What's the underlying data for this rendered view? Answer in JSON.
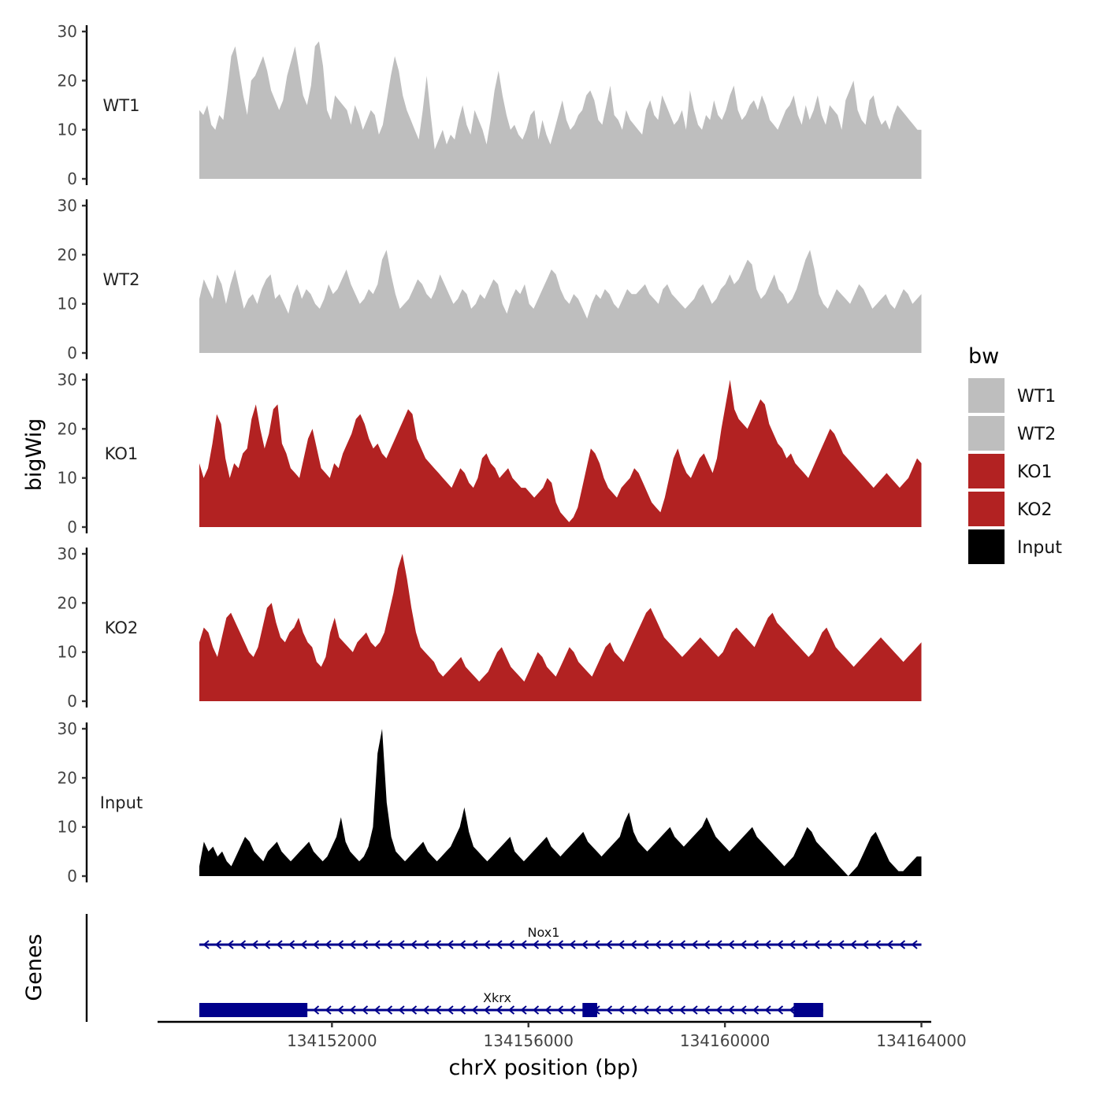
{
  "chart_data": {
    "type": "area",
    "title": "",
    "xlabel": "chrX position (bp)",
    "ylabel": "bigWig",
    "genes_label": "Genes",
    "xlim": [
      134148450,
      134164200
    ],
    "x_ticks": [
      134152000,
      134156000,
      134160000,
      134164000
    ],
    "x_tick_labels": [
      "134152000",
      "134156000",
      "134160000",
      "134164000"
    ],
    "y_ticks": [
      0,
      10,
      20,
      30
    ],
    "ylim": [
      0,
      30
    ],
    "x_start": 134149300,
    "x_end": 134164000,
    "tracks": [
      {
        "name": "WT1",
        "color": "#bebebe",
        "values": [
          14,
          13,
          15,
          11,
          10,
          13,
          12,
          18,
          25,
          27,
          22,
          17,
          13,
          20,
          21,
          23,
          25,
          22,
          18,
          16,
          14,
          16,
          21,
          24,
          27,
          22,
          17,
          15,
          19,
          27,
          28,
          23,
          14,
          12,
          17,
          16,
          15,
          14,
          11,
          15,
          13,
          10,
          12,
          14,
          13,
          9,
          11,
          16,
          21,
          25,
          22,
          17,
          14,
          12,
          10,
          8,
          14,
          21,
          13,
          6,
          8,
          10,
          7,
          9,
          8,
          12,
          15,
          11,
          9,
          14,
          12,
          10,
          7,
          12,
          18,
          22,
          17,
          13,
          10,
          11,
          9,
          8,
          10,
          13,
          14,
          8,
          12,
          9,
          7,
          10,
          13,
          16,
          12,
          10,
          11,
          13,
          14,
          17,
          18,
          16,
          12,
          11,
          15,
          19,
          13,
          12,
          10,
          14,
          12,
          11,
          10,
          9,
          14,
          16,
          13,
          12,
          17,
          15,
          13,
          11,
          12,
          14,
          10,
          18,
          14,
          11,
          10,
          13,
          12,
          16,
          13,
          12,
          14,
          17,
          19,
          14,
          12,
          13,
          15,
          16,
          14,
          17,
          15,
          12,
          11,
          10,
          12,
          14,
          15,
          17,
          13,
          11,
          15,
          12,
          14,
          17,
          13,
          11,
          15,
          14,
          13,
          10,
          16,
          18,
          20,
          14,
          12,
          11,
          16,
          17,
          13,
          11,
          12,
          10,
          13,
          15,
          14,
          13,
          12,
          11,
          10,
          10
        ]
      },
      {
        "name": "WT2",
        "color": "#bebebe",
        "values": [
          11,
          15,
          13,
          11,
          16,
          14,
          10,
          14,
          17,
          13,
          9,
          11,
          12,
          10,
          13,
          15,
          16,
          11,
          12,
          10,
          8,
          12,
          14,
          11,
          13,
          12,
          10,
          9,
          11,
          14,
          12,
          13,
          15,
          17,
          14,
          12,
          10,
          11,
          13,
          12,
          14,
          19,
          21,
          16,
          12,
          9,
          10,
          11,
          13,
          15,
          14,
          12,
          11,
          13,
          16,
          14,
          12,
          10,
          11,
          13,
          12,
          9,
          10,
          12,
          11,
          13,
          15,
          14,
          10,
          8,
          11,
          13,
          12,
          14,
          10,
          9,
          11,
          13,
          15,
          17,
          16,
          13,
          11,
          10,
          12,
          11,
          9,
          7,
          10,
          12,
          11,
          13,
          12,
          10,
          9,
          11,
          13,
          12,
          12,
          13,
          14,
          12,
          11,
          10,
          13,
          14,
          12,
          11,
          10,
          9,
          10,
          11,
          13,
          14,
          12,
          10,
          11,
          13,
          14,
          16,
          14,
          15,
          17,
          19,
          18,
          13,
          11,
          12,
          14,
          16,
          13,
          12,
          10,
          11,
          13,
          16,
          19,
          21,
          17,
          12,
          10,
          9,
          11,
          13,
          12,
          11,
          10,
          12,
          14,
          13,
          11,
          9,
          10,
          11,
          12,
          10,
          9,
          11,
          13,
          12,
          10,
          11,
          12
        ]
      },
      {
        "name": "KO1",
        "color": "#b22222",
        "values": [
          13,
          10,
          12,
          17,
          23,
          21,
          14,
          10,
          13,
          12,
          15,
          16,
          22,
          25,
          20,
          16,
          19,
          24,
          25,
          17,
          15,
          12,
          11,
          10,
          14,
          18,
          20,
          16,
          12,
          11,
          10,
          13,
          12,
          15,
          17,
          19,
          22,
          23,
          21,
          18,
          16,
          17,
          15,
          14,
          16,
          18,
          20,
          22,
          24,
          23,
          18,
          16,
          14,
          13,
          12,
          11,
          10,
          9,
          8,
          10,
          12,
          11,
          9,
          8,
          10,
          14,
          15,
          13,
          12,
          10,
          11,
          12,
          10,
          9,
          8,
          8,
          7,
          6,
          7,
          8,
          10,
          9,
          5,
          3,
          2,
          1,
          2,
          4,
          8,
          12,
          16,
          15,
          13,
          10,
          8,
          7,
          6,
          8,
          9,
          10,
          12,
          11,
          9,
          7,
          5,
          4,
          3,
          6,
          10,
          14,
          16,
          13,
          11,
          10,
          12,
          14,
          15,
          13,
          11,
          14,
          20,
          25,
          30,
          24,
          22,
          21,
          20,
          22,
          24,
          26,
          25,
          21,
          19,
          17,
          16,
          14,
          15,
          13,
          12,
          11,
          10,
          12,
          14,
          16,
          18,
          20,
          19,
          17,
          15,
          14,
          13,
          12,
          11,
          10,
          9,
          8,
          9,
          10,
          11,
          10,
          9,
          8,
          9,
          10,
          12,
          14,
          13
        ]
      },
      {
        "name": "KO2",
        "color": "#b22222",
        "values": [
          12,
          15,
          14,
          11,
          9,
          13,
          17,
          18,
          16,
          14,
          12,
          10,
          9,
          11,
          15,
          19,
          20,
          16,
          13,
          12,
          14,
          15,
          17,
          14,
          12,
          11,
          8,
          7,
          9,
          14,
          17,
          13,
          12,
          11,
          10,
          12,
          13,
          14,
          12,
          11,
          12,
          14,
          18,
          22,
          27,
          30,
          25,
          19,
          14,
          11,
          10,
          9,
          8,
          6,
          5,
          6,
          7,
          8,
          9,
          7,
          6,
          5,
          4,
          5,
          6,
          8,
          10,
          11,
          9,
          7,
          6,
          5,
          4,
          6,
          8,
          10,
          9,
          7,
          6,
          5,
          7,
          9,
          11,
          10,
          8,
          7,
          6,
          5,
          7,
          9,
          11,
          12,
          10,
          9,
          8,
          10,
          12,
          14,
          16,
          18,
          19,
          17,
          15,
          13,
          12,
          11,
          10,
          9,
          10,
          11,
          12,
          13,
          12,
          11,
          10,
          9,
          10,
          12,
          14,
          15,
          14,
          13,
          12,
          11,
          13,
          15,
          17,
          18,
          16,
          15,
          14,
          13,
          12,
          11,
          10,
          9,
          10,
          12,
          14,
          15,
          13,
          11,
          10,
          9,
          8,
          7,
          8,
          9,
          10,
          11,
          12,
          13,
          12,
          11,
          10,
          9,
          8,
          9,
          10,
          11,
          12
        ]
      },
      {
        "name": "Input",
        "color": "#000000",
        "values": [
          2,
          7,
          5,
          6,
          4,
          5,
          3,
          2,
          4,
          6,
          8,
          7,
          5,
          4,
          3,
          5,
          6,
          7,
          5,
          4,
          3,
          4,
          5,
          6,
          7,
          5,
          4,
          3,
          4,
          6,
          8,
          12,
          7,
          5,
          4,
          3,
          4,
          6,
          10,
          25,
          30,
          15,
          8,
          5,
          4,
          3,
          4,
          5,
          6,
          7,
          5,
          4,
          3,
          4,
          5,
          6,
          8,
          10,
          14,
          9,
          6,
          5,
          4,
          3,
          4,
          5,
          6,
          7,
          8,
          5,
          4,
          3,
          4,
          5,
          6,
          7,
          8,
          6,
          5,
          4,
          5,
          6,
          7,
          8,
          9,
          7,
          6,
          5,
          4,
          5,
          6,
          7,
          8,
          11,
          13,
          9,
          7,
          6,
          5,
          6,
          7,
          8,
          9,
          10,
          8,
          7,
          6,
          7,
          8,
          9,
          10,
          12,
          10,
          8,
          7,
          6,
          5,
          6,
          7,
          8,
          9,
          10,
          8,
          7,
          6,
          5,
          4,
          3,
          2,
          3,
          4,
          6,
          8,
          10,
          9,
          7,
          6,
          5,
          4,
          3,
          2,
          1,
          0,
          1,
          2,
          4,
          6,
          8,
          9,
          7,
          5,
          3,
          2,
          1,
          1,
          2,
          3,
          4,
          4
        ]
      }
    ],
    "genes": [
      {
        "name": "Nox1",
        "strand": "-",
        "start": 134149300,
        "end": 134164000,
        "exons": []
      },
      {
        "name": "Xkrx",
        "strand": "-",
        "start": 134149300,
        "end": 134162000,
        "exons": [
          [
            134149300,
            134151500
          ],
          [
            134157100,
            134157400
          ],
          [
            134161400,
            134162000
          ]
        ]
      }
    ],
    "gene_color": "#00008b",
    "legend": {
      "title": "bw",
      "position": "right",
      "entries": [
        {
          "label": "WT1",
          "color": "#bebebe"
        },
        {
          "label": "WT2",
          "color": "#bebebe"
        },
        {
          "label": "KO1",
          "color": "#b22222"
        },
        {
          "label": "KO2",
          "color": "#b22222"
        },
        {
          "label": "Input",
          "color": "#000000"
        }
      ]
    }
  }
}
